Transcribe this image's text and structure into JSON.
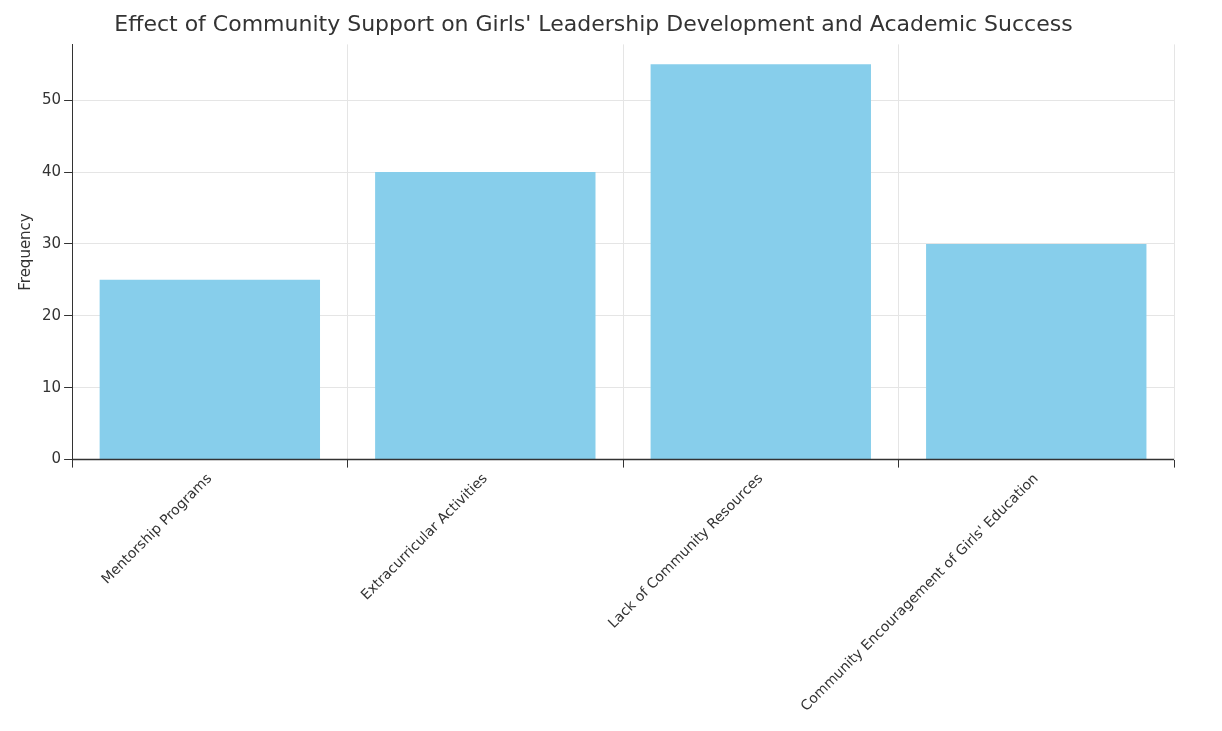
{
  "chart_data": {
    "type": "bar",
    "title": "Effect of Community Support on Girls' Leadership Development and Academic Success",
    "ylabel": "Frequency",
    "categories": [
      "Mentorship Programs",
      "Extracurricular Activities",
      "Lack of Community Resources",
      "Community Encouragement of Girls' Education"
    ],
    "values": [
      25,
      40,
      55,
      30
    ],
    "color": "#87ceeb",
    "ylim": [
      0,
      57.75
    ],
    "yticks": [
      0,
      10,
      20,
      30,
      40,
      50
    ],
    "grid": true
  }
}
